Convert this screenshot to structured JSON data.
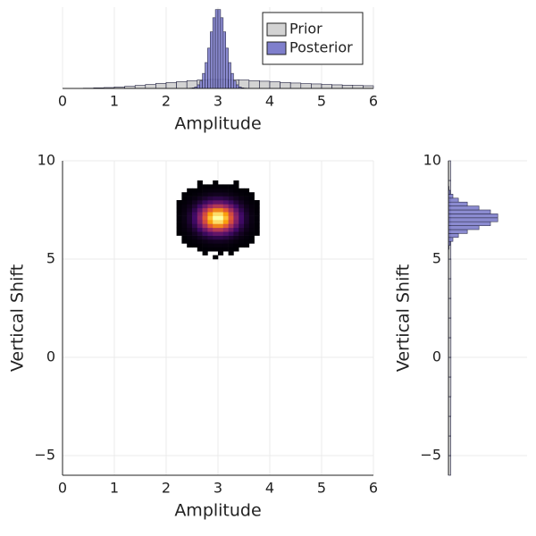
{
  "chart_data": [
    {
      "type": "histogram",
      "orientation": "vertical",
      "x_label": "Amplitude",
      "xlim": [
        0,
        6
      ],
      "xticks": [
        0,
        1,
        2,
        3,
        4,
        5,
        6
      ],
      "ylim": [
        0,
        2.7
      ],
      "grid": true,
      "legend": "top right",
      "series": [
        {
          "name": "Prior",
          "color": "#d3d3d3",
          "bins": [
            0,
            0.2,
            0.4,
            0.6,
            0.8,
            1,
            1.2,
            1.4,
            1.6,
            1.8,
            2,
            2.2,
            2.4,
            2.6,
            2.8,
            3,
            3.2,
            3.4,
            3.6,
            3.8,
            4,
            4.2,
            4.4,
            4.6,
            4.8,
            5,
            5.2,
            5.4,
            5.6,
            5.8,
            6
          ],
          "values": [
            0,
            0,
            0.01,
            0.02,
            0.03,
            0.05,
            0.07,
            0.1,
            0.13,
            0.17,
            0.2,
            0.23,
            0.26,
            0.28,
            0.3,
            0.3,
            0.29,
            0.28,
            0.26,
            0.24,
            0.22,
            0.2,
            0.18,
            0.16,
            0.15,
            0.13,
            0.12,
            0.11,
            0.1,
            0.09
          ]
        },
        {
          "name": "Posterior",
          "color": "#7f7fcc",
          "bins": [
            2.4,
            2.45,
            2.5,
            2.55,
            2.6,
            2.65,
            2.7,
            2.75,
            2.8,
            2.85,
            2.9,
            2.95,
            3,
            3.05,
            3.1,
            3.15,
            3.2,
            3.25,
            3.3,
            3.35,
            3.4,
            3.45,
            3.5,
            3.55,
            3.6
          ],
          "values": [
            0,
            0.01,
            0.02,
            0.05,
            0.12,
            0.25,
            0.5,
            0.86,
            1.34,
            1.88,
            2.35,
            2.62,
            2.62,
            2.35,
            1.88,
            1.34,
            0.86,
            0.5,
            0.25,
            0.12,
            0.05,
            0.02,
            0.01,
            0
          ]
        }
      ]
    },
    {
      "type": "histogram2d",
      "x_label": "Amplitude",
      "y_label": "Vertical Shift",
      "xlim": [
        0,
        6
      ],
      "xticks": [
        0,
        1,
        2,
        3,
        4,
        5,
        6
      ],
      "ylim": [
        -6,
        10
      ],
      "yticks": [
        {
          "value": -5,
          "label": "−5"
        },
        0,
        5,
        10
      ],
      "grid": true,
      "colorscale": [
        "#000004",
        "#420a68",
        "#932667",
        "#dd513a",
        "#fca50a",
        "#fcffa4"
      ],
      "xbins": [
        2.2,
        2.3,
        2.4,
        2.5,
        2.6,
        2.7,
        2.8,
        2.9,
        3,
        3.1,
        3.2,
        3.3,
        3.4,
        3.5,
        3.6,
        3.7,
        3.8
      ],
      "ybins": [
        5,
        5.2,
        5.4,
        5.6,
        5.8,
        6,
        6.2,
        6.4,
        6.6,
        6.8,
        7,
        7.2,
        7.4,
        7.6,
        7.8,
        8,
        8.2,
        8.4,
        8.6,
        8.8,
        9
      ],
      "z": [
        [
          0,
          0,
          0,
          0,
          0,
          0,
          0,
          1,
          0,
          0,
          0,
          0,
          0,
          0,
          0,
          0
        ],
        [
          0,
          0,
          0,
          0,
          0,
          1,
          0,
          0,
          1,
          0,
          1,
          0,
          0,
          0,
          0,
          0
        ],
        [
          0,
          0,
          0,
          0,
          1,
          1,
          2,
          2,
          2,
          2,
          1,
          1,
          0,
          0,
          0,
          0
        ],
        [
          0,
          0,
          1,
          1,
          2,
          4,
          5,
          6,
          6,
          5,
          4,
          2,
          1,
          1,
          0,
          0
        ],
        [
          0,
          1,
          1,
          3,
          6,
          10,
          14,
          16,
          16,
          14,
          10,
          6,
          3,
          1,
          1,
          0
        ],
        [
          0,
          1,
          4,
          8,
          15,
          25,
          34,
          40,
          40,
          34,
          25,
          15,
          8,
          4,
          1,
          0
        ],
        [
          1,
          3,
          7,
          17,
          31,
          51,
          70,
          82,
          82,
          70,
          51,
          31,
          17,
          7,
          3,
          1
        ],
        [
          2,
          5,
          13,
          29,
          55,
          89,
          122,
          143,
          143,
          122,
          89,
          55,
          29,
          13,
          5,
          2
        ],
        [
          2,
          7,
          19,
          43,
          82,
          132,
          182,
          213,
          213,
          182,
          132,
          82,
          43,
          19,
          7,
          2
        ],
        [
          3,
          9,
          25,
          55,
          104,
          168,
          231,
          271,
          271,
          231,
          168,
          104,
          55,
          25,
          9,
          3
        ],
        [
          3,
          10,
          27,
          59,
          113,
          182,
          251,
          294,
          294,
          251,
          182,
          113,
          59,
          27,
          10,
          3
        ],
        [
          3,
          9,
          25,
          55,
          104,
          168,
          231,
          271,
          271,
          231,
          168,
          104,
          55,
          25,
          9,
          3
        ],
        [
          2,
          7,
          19,
          43,
          82,
          132,
          182,
          213,
          213,
          182,
          132,
          82,
          43,
          19,
          7,
          2
        ],
        [
          2,
          5,
          13,
          29,
          55,
          89,
          122,
          143,
          143,
          122,
          89,
          55,
          29,
          13,
          5,
          2
        ],
        [
          1,
          3,
          7,
          17,
          31,
          51,
          70,
          82,
          82,
          70,
          51,
          31,
          17,
          7,
          3,
          1
        ],
        [
          0,
          1,
          4,
          8,
          15,
          25,
          34,
          40,
          40,
          34,
          25,
          15,
          8,
          4,
          1,
          0
        ],
        [
          0,
          1,
          1,
          3,
          6,
          10,
          14,
          16,
          16,
          14,
          10,
          6,
          3,
          1,
          1,
          0
        ],
        [
          0,
          0,
          1,
          1,
          2,
          4,
          5,
          6,
          6,
          5,
          4,
          2,
          1,
          1,
          0,
          0
        ],
        [
          0,
          0,
          0,
          0,
          1,
          1,
          2,
          2,
          2,
          2,
          1,
          1,
          0,
          0,
          0,
          0
        ],
        [
          0,
          0,
          0,
          0,
          1,
          0,
          0,
          1,
          0,
          0,
          0,
          1,
          0,
          0,
          0,
          0
        ]
      ]
    },
    {
      "type": "histogram",
      "orientation": "horizontal",
      "y_label": "Vertical Shift",
      "xlim": [
        0,
        1.25
      ],
      "ylim": [
        -6,
        10
      ],
      "yticks": [
        {
          "value": -5,
          "label": "−5"
        },
        0,
        5,
        10
      ],
      "grid": true,
      "series": [
        {
          "name": "Prior",
          "color": "#d3d3d3",
          "bins": [
            -6,
            -5,
            -4,
            -3,
            -2,
            -1,
            0,
            1,
            2,
            3,
            4,
            5,
            6,
            7,
            8,
            9,
            10
          ],
          "values": [
            0.036,
            0.037,
            0.038,
            0.039,
            0.04,
            0.04,
            0.04,
            0.04,
            0.04,
            0.04,
            0.04,
            0.039,
            0.038,
            0.037,
            0.036,
            0.035
          ]
        },
        {
          "name": "Posterior",
          "color": "#7f7fcc",
          "bins": [
            5.5,
            5.7,
            5.9,
            6.1,
            6.3,
            6.5,
            6.7,
            6.9,
            7.1,
            7.3,
            7.5,
            7.7,
            7.9,
            8.1,
            8.3,
            8.5,
            8.7,
            8.9
          ],
          "values": [
            0.009,
            0.027,
            0.071,
            0.158,
            0.3,
            0.485,
            0.668,
            0.784,
            0.784,
            0.668,
            0.485,
            0.3,
            0.158,
            0.071,
            0.027,
            0.009,
            0.0025
          ]
        }
      ]
    }
  ]
}
